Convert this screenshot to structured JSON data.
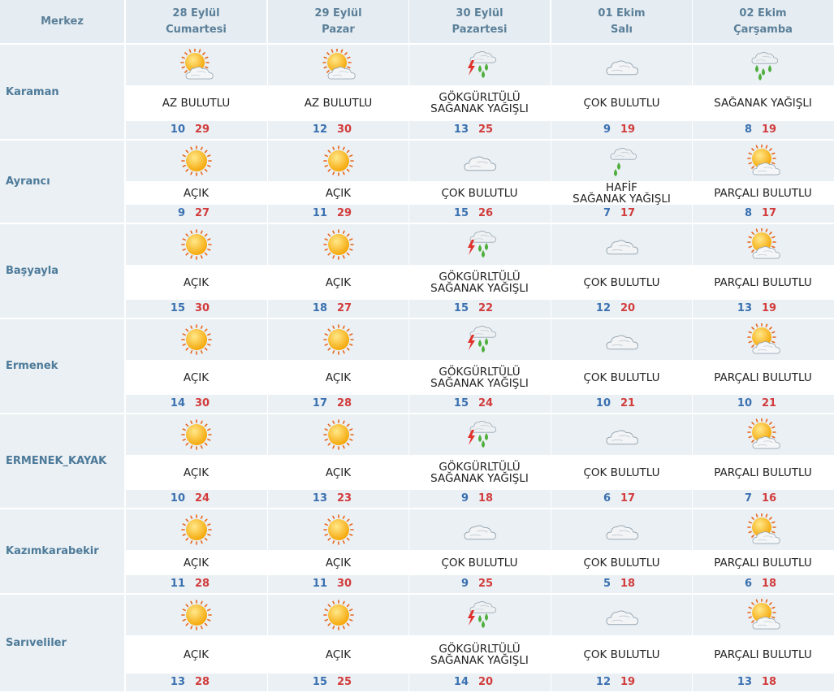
{
  "header": {
    "center_label": "Merkez",
    "days": [
      {
        "date": "28 Eylül",
        "weekday": "Cumartesi"
      },
      {
        "date": "29 Eylül",
        "weekday": "Pazar"
      },
      {
        "date": "30 Eylül",
        "weekday": "Pazartesi"
      },
      {
        "date": "01 Ekim",
        "weekday": "Salı"
      },
      {
        "date": "02 Ekim",
        "weekday": "Çarşamba"
      }
    ]
  },
  "colors": {
    "header_bg": "#e5edf2",
    "band_bg": "#eaf0f4",
    "header_text": "#5b7f99",
    "min_temp": "#3a70b0",
    "max_temp": "#d23c3c"
  },
  "rows": [
    {
      "name": "Karaman",
      "days": [
        {
          "icon": "partly-cloudy-sun-icon",
          "desc": "AZ BULUTLU",
          "min": "10",
          "max": "29"
        },
        {
          "icon": "partly-cloudy-sun-icon",
          "desc": "AZ BULUTLU",
          "min": "12",
          "max": "30"
        },
        {
          "icon": "thunder-shower-icon",
          "desc": "GÖKGÜRLTÜLÜ SAĞANAK YAĞIŞLI",
          "min": "13",
          "max": "25"
        },
        {
          "icon": "cloudy-icon",
          "desc": "ÇOK BULUTLU",
          "min": "9",
          "max": "19"
        },
        {
          "icon": "shower-icon",
          "desc": "SAĞANAK YAĞIŞLI",
          "min": "8",
          "max": "19"
        }
      ]
    },
    {
      "name": "Ayrancı",
      "days": [
        {
          "icon": "sun-icon",
          "desc": "AÇIK",
          "min": "9",
          "max": "27"
        },
        {
          "icon": "sun-icon",
          "desc": "AÇIK",
          "min": "11",
          "max": "29"
        },
        {
          "icon": "cloudy-icon",
          "desc": "ÇOK BULUTLU",
          "min": "15",
          "max": "26"
        },
        {
          "icon": "light-shower-icon",
          "desc": "HAFİF SAĞANAK YAĞIŞLI",
          "min": "7",
          "max": "17"
        },
        {
          "icon": "partly-cloudy-sun-icon",
          "desc": "PARÇALI BULUTLU",
          "min": "8",
          "max": "17"
        }
      ]
    },
    {
      "name": "Başyayla",
      "days": [
        {
          "icon": "sun-icon",
          "desc": "AÇIK",
          "min": "15",
          "max": "30"
        },
        {
          "icon": "sun-icon",
          "desc": "AÇIK",
          "min": "18",
          "max": "27"
        },
        {
          "icon": "thunder-shower-icon",
          "desc": "GÖKGÜRLTÜLÜ SAĞANAK YAĞIŞLI",
          "min": "15",
          "max": "22"
        },
        {
          "icon": "cloudy-icon",
          "desc": "ÇOK BULUTLU",
          "min": "12",
          "max": "20"
        },
        {
          "icon": "partly-cloudy-sun-icon",
          "desc": "PARÇALI BULUTLU",
          "min": "13",
          "max": "19"
        }
      ]
    },
    {
      "name": "Ermenek",
      "days": [
        {
          "icon": "sun-icon",
          "desc": "AÇIK",
          "min": "14",
          "max": "30"
        },
        {
          "icon": "sun-icon",
          "desc": "AÇIK",
          "min": "17",
          "max": "28"
        },
        {
          "icon": "thunder-shower-icon",
          "desc": "GÖKGÜRLTÜLÜ SAĞANAK YAĞIŞLI",
          "min": "15",
          "max": "24"
        },
        {
          "icon": "cloudy-icon",
          "desc": "ÇOK BULUTLU",
          "min": "10",
          "max": "21"
        },
        {
          "icon": "partly-cloudy-sun-icon",
          "desc": "PARÇALI BULUTLU",
          "min": "10",
          "max": "21"
        }
      ]
    },
    {
      "name": "ERMENEK_KAYAK",
      "days": [
        {
          "icon": "sun-icon",
          "desc": "AÇIK",
          "min": "10",
          "max": "24"
        },
        {
          "icon": "sun-icon",
          "desc": "AÇIK",
          "min": "13",
          "max": "23"
        },
        {
          "icon": "thunder-shower-icon",
          "desc": "GÖKGÜRLTÜLÜ SAĞANAK YAĞIŞLI",
          "min": "9",
          "max": "18"
        },
        {
          "icon": "cloudy-icon",
          "desc": "ÇOK BULUTLU",
          "min": "6",
          "max": "17"
        },
        {
          "icon": "partly-cloudy-sun-icon",
          "desc": "PARÇALI BULUTLU",
          "min": "7",
          "max": "16"
        }
      ]
    },
    {
      "name": "Kazımkarabekir",
      "days": [
        {
          "icon": "sun-icon",
          "desc": "AÇIK",
          "min": "11",
          "max": "28"
        },
        {
          "icon": "sun-icon",
          "desc": "AÇIK",
          "min": "11",
          "max": "30"
        },
        {
          "icon": "cloudy-icon",
          "desc": "ÇOK BULUTLU",
          "min": "9",
          "max": "25"
        },
        {
          "icon": "cloudy-icon",
          "desc": "ÇOK BULUTLU",
          "min": "5",
          "max": "18"
        },
        {
          "icon": "partly-cloudy-sun-icon",
          "desc": "PARÇALI BULUTLU",
          "min": "6",
          "max": "18"
        }
      ]
    },
    {
      "name": "Sarıveliler",
      "days": [
        {
          "icon": "sun-icon",
          "desc": "AÇIK",
          "min": "13",
          "max": "28"
        },
        {
          "icon": "sun-icon",
          "desc": "AÇIK",
          "min": "15",
          "max": "25"
        },
        {
          "icon": "thunder-shower-icon",
          "desc": "GÖKGÜRLTÜLÜ SAĞANAK YAĞIŞLI",
          "min": "14",
          "max": "20"
        },
        {
          "icon": "cloudy-icon",
          "desc": "ÇOK BULUTLU",
          "min": "12",
          "max": "19"
        },
        {
          "icon": "partly-cloudy-sun-icon",
          "desc": "PARÇALI BULUTLU",
          "min": "13",
          "max": "18"
        }
      ]
    }
  ]
}
